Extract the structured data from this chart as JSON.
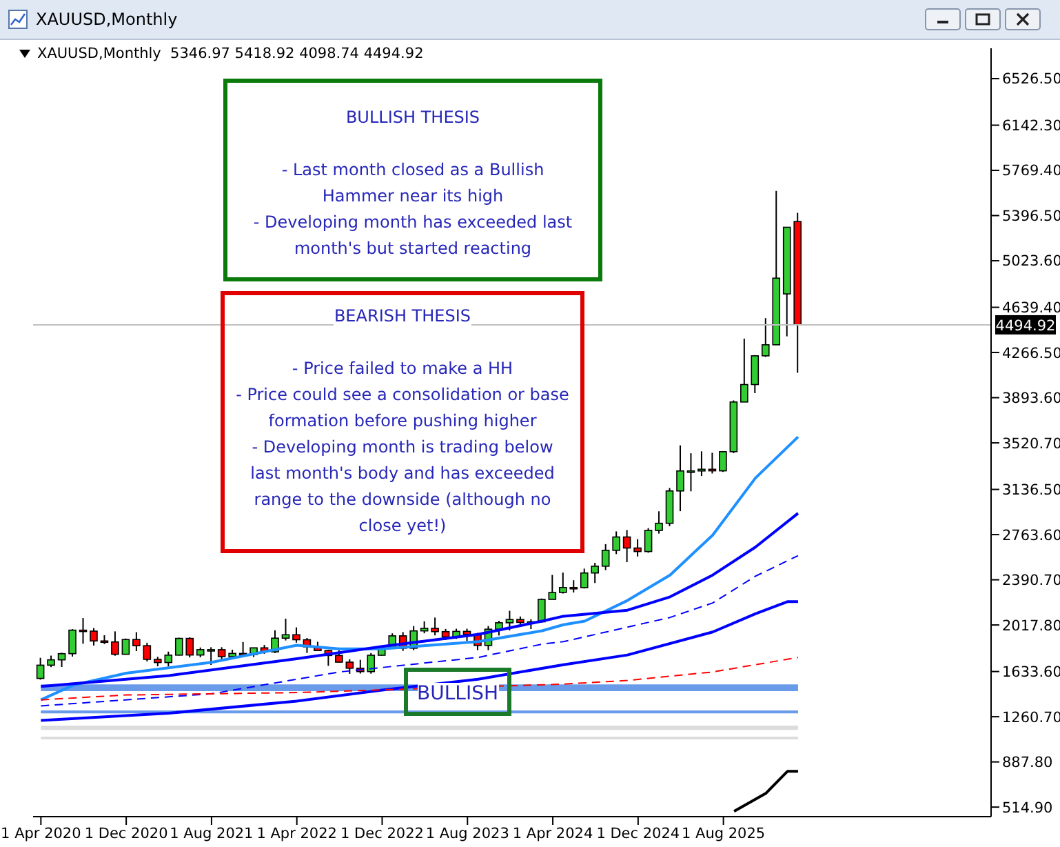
{
  "chart_data": {
    "type": "candlestick",
    "title": "XAUUSD,Monthly",
    "subtitle": "XAUUSD,Monthly  5346.97 5418.92 4098.74 4494.92",
    "x": [
      "2020-04",
      "2020-05",
      "2020-06",
      "2020-07",
      "2020-08",
      "2020-09",
      "2020-10",
      "2020-11",
      "2020-12",
      "2021-01",
      "2021-02",
      "2021-03",
      "2021-04",
      "2021-05",
      "2021-06",
      "2021-07",
      "2021-08",
      "2021-09",
      "2021-10",
      "2021-11",
      "2021-12",
      "2022-01",
      "2022-02",
      "2022-03",
      "2022-04",
      "2022-05",
      "2022-06",
      "2022-07",
      "2022-08",
      "2022-09",
      "2022-10",
      "2022-11",
      "2022-12",
      "2023-01",
      "2023-02",
      "2023-03",
      "2023-04",
      "2023-05",
      "2023-06",
      "2023-07",
      "2023-08",
      "2023-09",
      "2023-10",
      "2023-11",
      "2023-12",
      "2024-01",
      "2024-02",
      "2024-03",
      "2024-04",
      "2024-05",
      "2024-06",
      "2024-07",
      "2024-08",
      "2024-09",
      "2024-10",
      "2024-11",
      "2024-12",
      "2025-01",
      "2025-02",
      "2025-03",
      "2025-04",
      "2025-05",
      "2025-06",
      "2025-07",
      "2025-08",
      "2025-09",
      "2025-10",
      "2025-11",
      "2025-12",
      "2026-01",
      "2026-02",
      "2026-03"
    ],
    "ohlc": [
      [
        1577,
        1747,
        1567,
        1686
      ],
      [
        1686,
        1765,
        1670,
        1730
      ],
      [
        1730,
        1789,
        1671,
        1781
      ],
      [
        1781,
        1983,
        1757,
        1975
      ],
      [
        1975,
        2075,
        1863,
        1967
      ],
      [
        1967,
        1992,
        1848,
        1886
      ],
      [
        1886,
        1933,
        1860,
        1878
      ],
      [
        1878,
        1965,
        1764,
        1776
      ],
      [
        1776,
        1906,
        1775,
        1898
      ],
      [
        1898,
        1959,
        1802,
        1847
      ],
      [
        1847,
        1871,
        1717,
        1734
      ],
      [
        1734,
        1755,
        1677,
        1708
      ],
      [
        1708,
        1798,
        1677,
        1769
      ],
      [
        1769,
        1913,
        1766,
        1907
      ],
      [
        1907,
        1916,
        1750,
        1770
      ],
      [
        1770,
        1832,
        1751,
        1814
      ],
      [
        1814,
        1834,
        1688,
        1814
      ],
      [
        1814,
        1834,
        1721,
        1757
      ],
      [
        1757,
        1814,
        1746,
        1783
      ],
      [
        1783,
        1877,
        1758,
        1774
      ],
      [
        1774,
        1831,
        1753,
        1829
      ],
      [
        1829,
        1853,
        1780,
        1796
      ],
      [
        1796,
        1974,
        1786,
        1909
      ],
      [
        1909,
        2070,
        1890,
        1937
      ],
      [
        1937,
        1998,
        1872,
        1896
      ],
      [
        1896,
        1910,
        1787,
        1837
      ],
      [
        1837,
        1879,
        1805,
        1807
      ],
      [
        1807,
        1814,
        1681,
        1766
      ],
      [
        1766,
        1808,
        1709,
        1711
      ],
      [
        1711,
        1735,
        1615,
        1661
      ],
      [
        1661,
        1730,
        1617,
        1633
      ],
      [
        1633,
        1786,
        1616,
        1768
      ],
      [
        1768,
        1833,
        1765,
        1824
      ],
      [
        1824,
        1949,
        1823,
        1928
      ],
      [
        1928,
        1959,
        1804,
        1826
      ],
      [
        1826,
        2009,
        1810,
        1969
      ],
      [
        1969,
        2048,
        1949,
        1990
      ],
      [
        1990,
        2079,
        1932,
        1963
      ],
      [
        1963,
        1985,
        1893,
        1919
      ],
      [
        1919,
        1987,
        1903,
        1965
      ],
      [
        1965,
        1987,
        1885,
        1940
      ],
      [
        1940,
        1953,
        1810,
        1849
      ],
      [
        1849,
        2009,
        1810,
        1983
      ],
      [
        1983,
        2052,
        1931,
        2036
      ],
      [
        2036,
        2135,
        1973,
        2063
      ],
      [
        2063,
        2088,
        2001,
        2039
      ],
      [
        2039,
        2065,
        1984,
        2044
      ],
      [
        2044,
        2236,
        2039,
        2229
      ],
      [
        2229,
        2431,
        2228,
        2286
      ],
      [
        2286,
        2450,
        2277,
        2327
      ],
      [
        2327,
        2387,
        2286,
        2326
      ],
      [
        2326,
        2483,
        2319,
        2447
      ],
      [
        2447,
        2531,
        2364,
        2503
      ],
      [
        2503,
        2685,
        2471,
        2634
      ],
      [
        2634,
        2790,
        2603,
        2744
      ],
      [
        2744,
        2801,
        2536,
        2653
      ],
      [
        2653,
        2726,
        2583,
        2624
      ],
      [
        2624,
        2817,
        2614,
        2798
      ],
      [
        2798,
        2956,
        2772,
        2857
      ],
      [
        2857,
        3148,
        2833,
        3124
      ],
      [
        3124,
        3500,
        2957,
        3289
      ],
      [
        3289,
        3435,
        3121,
        3289
      ],
      [
        3289,
        3451,
        3247,
        3303
      ],
      [
        3303,
        3439,
        3268,
        3290
      ],
      [
        3290,
        3453,
        3281,
        3448
      ],
      [
        3448,
        3871,
        3436,
        3858
      ],
      [
        3858,
        4381,
        3858,
        4002
      ],
      [
        4002,
        4245,
        3931,
        4239
      ],
      [
        4239,
        4550,
        4230,
        4330
      ],
      [
        4330,
        5600,
        4330,
        4880
      ],
      [
        4750,
        5300,
        4400,
        5300
      ],
      [
        5346.97,
        5418.92,
        4098.74,
        4494.92
      ]
    ],
    "series": [
      {
        "type": "line",
        "color": "#1e90ff",
        "x": [
          "2020-04",
          "2020-07",
          "2020-12",
          "2021-08",
          "2022-04",
          "2022-08",
          "2022-12",
          "2023-09",
          "2024-03",
          "2024-05",
          "2024-07",
          "2024-11",
          "2025-03",
          "2025-07",
          "2025-11",
          "2026-03"
        ],
        "values": [
          1400,
          1520,
          1620,
          1710,
          1850,
          1820,
          1820,
          1880,
          1970,
          2020,
          2050,
          2220,
          2430,
          2760,
          3230,
          3570
        ]
      },
      {
        "type": "line",
        "color": "#0000ff",
        "x": [
          "2020-04",
          "2021-04",
          "2022-04",
          "2022-12",
          "2023-09",
          "2024-03",
          "2024-05",
          "2024-11",
          "2025-03",
          "2025-07",
          "2025-11",
          "2026-03"
        ],
        "values": [
          1510,
          1600,
          1740,
          1840,
          1940,
          2050,
          2090,
          2140,
          2250,
          2430,
          2660,
          2940
        ]
      },
      {
        "type": "line",
        "color": "#0000ff",
        "line_style": "dashed",
        "x": [
          "2020-04",
          "2021-08",
          "2022-08",
          "2023-09",
          "2024-03",
          "2024-05",
          "2025-03",
          "2025-07",
          "2025-11",
          "2026-03"
        ],
        "values": [
          1350,
          1450,
          1630,
          1750,
          1860,
          1880,
          2080,
          2200,
          2420,
          2590
        ]
      },
      {
        "type": "line",
        "color": "#0000ff",
        "x": [
          "2020-04",
          "2021-04",
          "2022-04",
          "2022-12",
          "2023-09",
          "2024-05",
          "2024-11",
          "2025-07",
          "2025-11",
          "2026-02",
          "2026-03"
        ],
        "values": [
          1230,
          1290,
          1390,
          1480,
          1570,
          1690,
          1770,
          1960,
          2110,
          2210,
          2210
        ]
      },
      {
        "type": "line",
        "color": "#ff0000",
        "line_style": "dashed",
        "x": [
          "2020-04",
          "2020-12",
          "2022-04",
          "2024-05",
          "2024-11",
          "2025-07",
          "2026-03"
        ],
        "values": [
          1400,
          1440,
          1460,
          1530,
          1560,
          1630,
          1750
        ]
      },
      {
        "type": "line",
        "color": "#000000",
        "x": [
          "2025-09",
          "2025-12",
          "2026-02",
          "2026-03"
        ],
        "values": [
          480,
          630,
          810,
          810
        ]
      }
    ],
    "xlim": [
      "2020-03-09",
      "2027-09-04"
    ],
    "xticks": [
      {
        "value": "2020-04",
        "label": "1 Apr 2020"
      },
      {
        "value": "2020-12",
        "label": "1 Dec 2020"
      },
      {
        "value": "2021-08",
        "label": "1 Aug 2021"
      },
      {
        "value": "2022-04",
        "label": "1 Apr 2022"
      },
      {
        "value": "2022-12",
        "label": "1 Dec 2022"
      },
      {
        "value": "2023-08",
        "label": "1 Aug 2023"
      },
      {
        "value": "2024-04",
        "label": "1 Apr 2024"
      },
      {
        "value": "2024-12",
        "label": "1 Dec 2024"
      },
      {
        "value": "2025-08",
        "label": "1 Aug 2025"
      }
    ],
    "ylim": [
      436,
      6777
    ],
    "yticks": [
      {
        "value": 514.9,
        "label": "514.90"
      },
      {
        "value": 887.8,
        "label": "887.80"
      },
      {
        "value": 1260.7,
        "label": "1260.70"
      },
      {
        "value": 1633.6,
        "label": "1633.60"
      },
      {
        "value": 2017.8,
        "label": "2017.80"
      },
      {
        "value": 2390.7,
        "label": "2390.70"
      },
      {
        "value": 2763.6,
        "label": "2763.60"
      },
      {
        "value": 3136.5,
        "label": "3136.50"
      },
      {
        "value": 3520.7,
        "label": "3520.70"
      },
      {
        "value": 3893.6,
        "label": "3893.60"
      },
      {
        "value": 4266.5,
        "label": "4266.50"
      },
      {
        "value": 4639.4,
        "label": "4639.40"
      },
      {
        "value": 5023.6,
        "label": "5023.60"
      },
      {
        "value": 5396.5,
        "label": "5396.50"
      },
      {
        "value": 5769.4,
        "label": "5769.40"
      },
      {
        "value": 6142.3,
        "label": "6142.30"
      },
      {
        "value": 6526.5,
        "label": "6526.50"
      }
    ],
    "ref_lines": [
      {
        "axis": "y",
        "value": 4494.92,
        "label": "4494.92",
        "color": "#c0c0c0"
      }
    ],
    "bands": [
      {
        "axis": "y",
        "from": 1472,
        "to": 1528,
        "color": "#6a9be8"
      },
      {
        "axis": "y",
        "from": 1289,
        "to": 1312,
        "color": "#6a9be8"
      },
      {
        "axis": "y",
        "from": 1152,
        "to": 1187,
        "color": "#dcdcdc"
      },
      {
        "axis": "y",
        "from": 1073,
        "to": 1096,
        "color": "#dcdcdc"
      }
    ],
    "annotations": [
      "BULLISH THESIS\n\n- Last month closed as a Bullish\nHammer near its high\n- Developing month has exceeded last\nmonth's but started reacting",
      "BEARISH THESIS\n\n- Price failed to make a HH\n- Price could see a consolidation or base\nformation before pushing higher\n- Developing month is trading below\nlast month's body and has exceeded\nrange to the downside (although no\nclose yet!)",
      "BULLISH"
    ]
  }
}
